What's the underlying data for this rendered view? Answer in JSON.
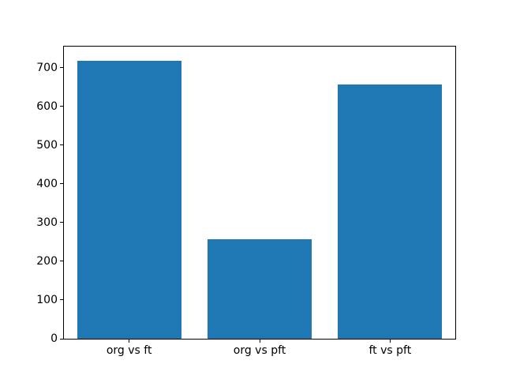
{
  "chart_data": {
    "type": "bar",
    "categories": [
      "org vs ft",
      "org vs pft",
      "ft vs pft"
    ],
    "values": [
      719,
      258,
      658
    ],
    "title": "",
    "xlabel": "",
    "ylabel": "",
    "ylim": [
      0,
      755
    ],
    "yticks": [
      0,
      100,
      200,
      300,
      400,
      500,
      600,
      700
    ],
    "bar_color": "#1f77b4",
    "background_color": "#ffffff",
    "spine_color": "#000000",
    "bar_width_fraction": 0.8,
    "grid": false,
    "legend": "none"
  }
}
